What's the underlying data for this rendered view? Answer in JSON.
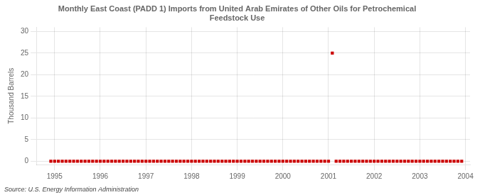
{
  "chart_data": {
    "type": "scatter",
    "title": "Monthly East Coast (PADD 1) Imports from United Arab Emirates of Other Oils for Petrochemical\nFeedstock Use",
    "ylabel": "Thousand Barrels",
    "annotations": [
      "Source: U.S. Energy Information Administration"
    ],
    "color": "#cc0000",
    "marker": "square",
    "grid": true,
    "xlim": [
      1994.6,
      2004.1
    ],
    "ylim": [
      -0.8,
      31
    ],
    "xticks": [
      1995,
      1996,
      1997,
      1998,
      1999,
      2000,
      2001,
      2002,
      2003,
      2004
    ],
    "yticks": [
      0,
      5,
      10,
      15,
      20,
      25,
      30
    ],
    "x": [
      1994.917,
      1995.0,
      1995.083,
      1995.167,
      1995.25,
      1995.333,
      1995.417,
      1995.5,
      1995.583,
      1995.667,
      1995.75,
      1995.833,
      1995.917,
      1996.0,
      1996.083,
      1996.167,
      1996.25,
      1996.333,
      1996.417,
      1996.5,
      1996.583,
      1996.667,
      1996.75,
      1996.833,
      1996.917,
      1997.0,
      1997.083,
      1997.167,
      1997.25,
      1997.333,
      1997.417,
      1997.5,
      1997.583,
      1997.667,
      1997.75,
      1997.833,
      1997.917,
      1998.0,
      1998.083,
      1998.167,
      1998.25,
      1998.333,
      1998.417,
      1998.5,
      1998.583,
      1998.667,
      1998.75,
      1998.833,
      1998.917,
      1999.0,
      1999.083,
      1999.167,
      1999.25,
      1999.333,
      1999.417,
      1999.5,
      1999.583,
      1999.667,
      1999.75,
      1999.833,
      1999.917,
      2000.0,
      2000.083,
      2000.167,
      2000.25,
      2000.333,
      2000.417,
      2000.5,
      2000.583,
      2000.667,
      2000.75,
      2000.833,
      2000.917,
      2001.0,
      2001.083,
      2001.167,
      2001.25,
      2001.333,
      2001.417,
      2001.5,
      2001.583,
      2001.667,
      2001.75,
      2001.833,
      2001.917,
      2002.0,
      2002.083,
      2002.167,
      2002.25,
      2002.333,
      2002.417,
      2002.5,
      2002.583,
      2002.667,
      2002.75,
      2002.833,
      2002.917,
      2003.0,
      2003.083,
      2003.167,
      2003.25,
      2003.333,
      2003.417,
      2003.5,
      2003.583,
      2003.667,
      2003.75,
      2003.833,
      2003.917
    ],
    "values": [
      0,
      0,
      0,
      0,
      0,
      0,
      0,
      0,
      0,
      0,
      0,
      0,
      0,
      0,
      0,
      0,
      0,
      0,
      0,
      0,
      0,
      0,
      0,
      0,
      0,
      0,
      0,
      0,
      0,
      0,
      0,
      0,
      0,
      0,
      0,
      0,
      0,
      0,
      0,
      0,
      0,
      0,
      0,
      0,
      0,
      0,
      0,
      0,
      0,
      0,
      0,
      0,
      0,
      0,
      0,
      0,
      0,
      0,
      0,
      0,
      0,
      0,
      0,
      0,
      0,
      0,
      0,
      0,
      0,
      0,
      0,
      0,
      0,
      0,
      25,
      0,
      0,
      0,
      0,
      0,
      0,
      0,
      0,
      0,
      0,
      0,
      0,
      0,
      0,
      0,
      0,
      0,
      0,
      0,
      0,
      0,
      0,
      0,
      0,
      0,
      0,
      0,
      0,
      0,
      0,
      0,
      0,
      0,
      0
    ]
  }
}
